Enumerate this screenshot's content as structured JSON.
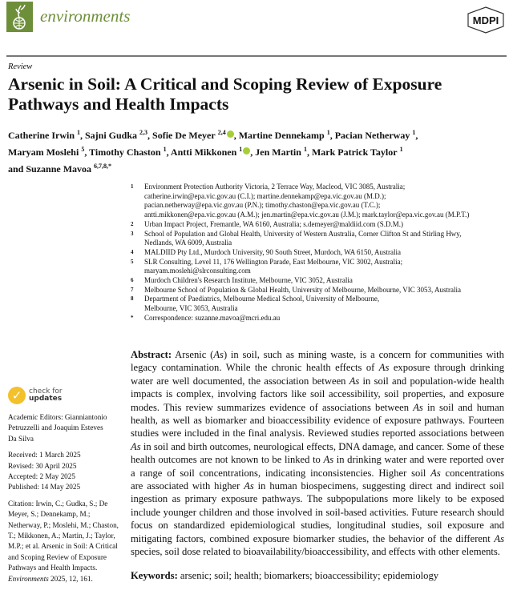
{
  "header": {
    "journal": "environments",
    "publisher": "MDPI",
    "colors": {
      "brand": "#6e8f3a"
    },
    "logo_icon": "plant-globe-icon"
  },
  "article": {
    "type": "Review",
    "title_lines": [
      "Arsenic in Soil: A Critical and Scoping Review of Exposure",
      "Pathways and Health Impacts"
    ],
    "authors": [
      {
        "name": "Catherine Irwin",
        "sup": "1"
      },
      {
        "name": "Sajni Gudka",
        "sup": "2,3"
      },
      {
        "name": "Sofie De Meyer",
        "sup": "2,4",
        "orcid": true
      },
      {
        "name": "Martine Dennekamp",
        "sup": "1"
      },
      {
        "name": "Pacian Netherway",
        "sup": "1"
      },
      {
        "name": "Maryam Moslehi",
        "sup": "5"
      },
      {
        "name": "Timothy Chaston",
        "sup": "1"
      },
      {
        "name": "Antti Mikkonen",
        "sup": "1",
        "orcid": true
      },
      {
        "name": "Jen Martin",
        "sup": "1"
      },
      {
        "name": "Mark Patrick Taylor",
        "sup": "1"
      },
      {
        "name": "Suzanne Mavoa",
        "sup": "6,7,8,*"
      }
    ],
    "affiliations": [
      {
        "n": "1",
        "lines": [
          "Environment Protection Authority Victoria, 2 Terrace Way, Macleod, VIC 3085, Australia;",
          "catherine.irwin@epa.vic.gov.au (C.I.); martine.dennekamp@epa.vic.gov.au (M.D.);",
          "pacian.netherway@epa.vic.gov.au (P.N.); timothy.chaston@epa.vic.gov.au (T.C.);",
          "antti.mikkonen@epa.vic.gov.au (A.M.); jen.martin@epa.vic.gov.au (J.M.); mark.taylor@epa.vic.gov.au (M.P.T.)"
        ]
      },
      {
        "n": "2",
        "lines": [
          "Urban Impact Project, Fremantle, WA 6160, Australia; s.demeyer@maldiid.com (S.D.M.)"
        ]
      },
      {
        "n": "3",
        "lines": [
          "School of Population and Global Health, University of Western Australia, Corner Clifton St and Stirling Hwy,",
          "Nedlands, WA 6009, Australia"
        ]
      },
      {
        "n": "4",
        "lines": [
          "MALDIID Pty Ltd., Murdoch University, 90 South Street, Murdoch, WA 6150, Australia"
        ]
      },
      {
        "n": "5",
        "lines": [
          "SLR Consulting, Level 11, 176 Wellington Parade, East Melbourne, VIC 3002, Australia;",
          "maryam.moslehi@slrconsulting.com"
        ]
      },
      {
        "n": "6",
        "lines": [
          "Murdoch Children's Research Institute, Melbourne, VIC 3052, Australia"
        ]
      },
      {
        "n": "7",
        "lines": [
          "Melbourne School of Population & Global Health, University of Melbourne, Melbourne, VIC 3053, Australia"
        ]
      },
      {
        "n": "8",
        "lines": [
          "Department of Paediatrics, Melbourne Medical School, University of Melbourne,",
          "Melbourne, VIC 3053, Australia"
        ]
      },
      {
        "n": "*",
        "lines": [
          "Correspondence: suzanne.mavoa@mcri.edu.au"
        ]
      }
    ],
    "abstract_label": "Abstract:",
    "abstract_lines": [
      "Arsenic (As) in soil, such as mining waste, is a concern for communities with",
      "legacy contamination. While the chronic health effects of As exposure through drinking",
      "water are well documented, the association between As in soil and population-wide health",
      "impacts is complex, involving factors like soil accessibility, soil properties, and exposure",
      "modes. This review summarizes evidence of associations between As in soil and human",
      "health, as well as biomarker and bioaccessibility evidence of exposure pathways. Fourteen",
      "studies were included in the final analysis. Reviewed studies reported associations between",
      "As in soil and birth outcomes, neurological effects, DNA damage, and cancer. Some of these",
      "health outcomes are not known to be linked to As in drinking water and were reported over",
      "a range of soil concentrations, indicating inconsistencies.  Higher soil As concentrations",
      "are associated with higher As in human biospecimens, suggesting direct and indirect soil",
      "ingestion as primary exposure pathways. The subpopulations more likely to be exposed",
      "include younger children and those involved in soil-based activities. Future research should",
      "focus on standardized epidemiological studies, longitudinal studies, soil exposure and",
      "mitigating factors, combined exposure biomarker studies, the behavior of the different As",
      "species, soil dose related to bioavailability/bioaccessibility, and effects with other elements."
    ],
    "keywords_label": "Keywords:",
    "keywords": "arsenic; soil; health; biomarkers; bioaccessibility; epidemiology"
  },
  "sidebar": {
    "check_updates": {
      "line1": "check for",
      "line2": "updates"
    },
    "editors_lines": [
      "Academic Editors: Gianniantonio",
      "Petruzzelli and Joaquim Esteves",
      "Da Silva"
    ],
    "dates": [
      "Received: 1 March 2025",
      "Revised: 30 April 2025",
      "Accepted: 2 May 2025",
      "Published: 14 May 2025"
    ],
    "citation_lines": [
      "Citation:   Irwin, C.; Gudka, S.; De",
      "Meyer, S.; Dennekamp, M.;",
      "Netherway, P.; Moslehi, M.; Chaston,",
      "T.; Mikkonen, A.; Martin, J.; Taylor,",
      "M.P.; et al. Arsenic in Soil: A Critical",
      "and Scoping Review of Exposure",
      "Pathways and Health Impacts.",
      "Environments 2025, 12, 161."
    ]
  }
}
